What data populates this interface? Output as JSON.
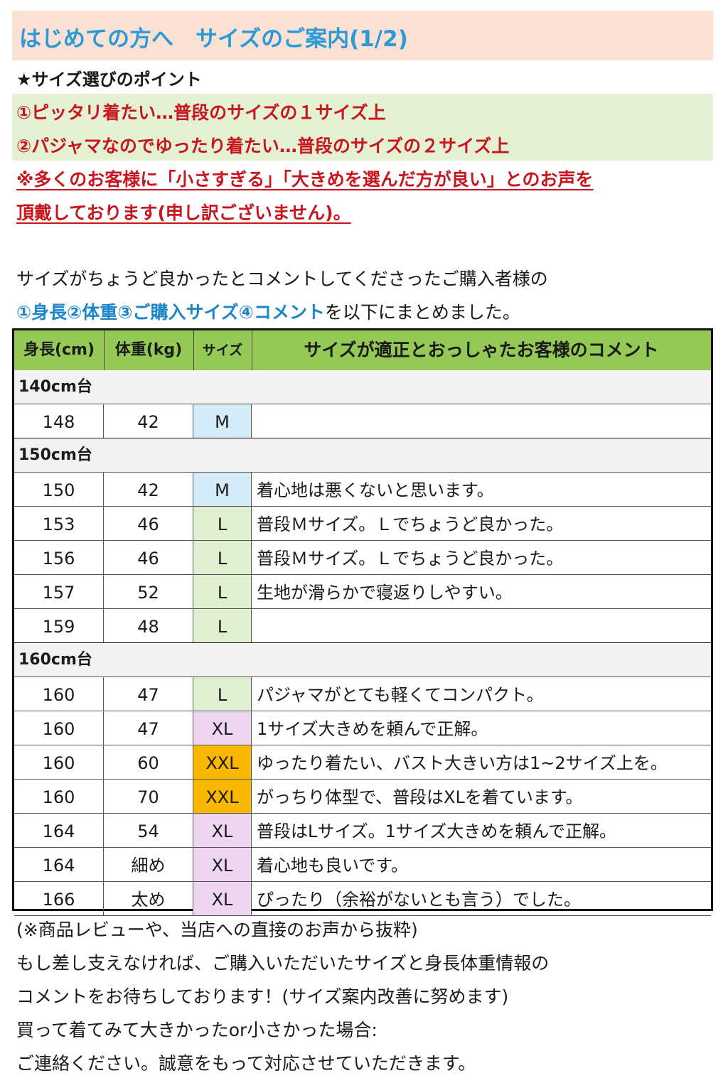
{
  "title": "はじめての方へ　サイズのご案内(1/2)",
  "points": {
    "heading": "★サイズ選びのポイント",
    "p1": "①ピッタリ着たい…普段のサイズの１サイズ上",
    "p2": "②パジャマなのでゆったり着たい…普段のサイズの２サイズ上",
    "note1": "※多くのお客様に「小さすぎる」「大きめを選んだ方が良い」とのお声を",
    "note2": "頂戴しております(申し訳ございません)。"
  },
  "intro": {
    "line1": "サイズがちょうど良かったとコメントしてくださったご購入者様の",
    "line2_blue": "①身長②体重③ご購入サイズ④コメント",
    "line2_rest": "を以下にまとめました。"
  },
  "table": {
    "headers": [
      "身長(cm)",
      "体重(kg)",
      "サイズ",
      "サイズが適正とおっしゃたお客様のコメント"
    ],
    "groups": [
      {
        "label": "140cm台",
        "rows": [
          {
            "height": "148",
            "weight": "42",
            "size": "M",
            "comment": ""
          }
        ]
      },
      {
        "label": "150cm台",
        "rows": [
          {
            "height": "150",
            "weight": "42",
            "size": "M",
            "comment": "着心地は悪くないと思います。"
          },
          {
            "height": "153",
            "weight": "46",
            "size": "L",
            "comment": "普段Ｍサイズ。Ｌでちょうど良かった。"
          },
          {
            "height": "156",
            "weight": "46",
            "size": "L",
            "comment": "普段Ｍサイズ。Ｌでちょうど良かった。"
          },
          {
            "height": "157",
            "weight": "52",
            "size": "L",
            "comment": "生地が滑らかで寝返りしやすい。"
          },
          {
            "height": "159",
            "weight": "48",
            "size": "L",
            "comment": ""
          }
        ]
      },
      {
        "label": "160cm台",
        "rows": [
          {
            "height": "160",
            "weight": "47",
            "size": "L",
            "comment": "パジャマがとても軽くてコンパクト。"
          },
          {
            "height": "160",
            "weight": "47",
            "size": "XL",
            "comment": "1サイズ大きめを頼んで正解。"
          },
          {
            "height": "160",
            "weight": "60",
            "size": "XXL",
            "comment": "ゆったり着たい、バスト大きい方は1~2サイズ上を。"
          },
          {
            "height": "160",
            "weight": "70",
            "size": "XXL",
            "comment": "がっちり体型で、普段はXLを着ています。"
          },
          {
            "height": "164",
            "weight": "54",
            "size": "XL",
            "comment": "普段はLサイズ。1サイズ大きめを頼んで正解。"
          },
          {
            "height": "164",
            "weight": "細め",
            "size": "XL",
            "comment": "着心地も良いです。"
          },
          {
            "height": "166",
            "weight": "太め",
            "size": "XL",
            "comment": "ぴったり（余裕がないとも言う）でした。"
          }
        ]
      }
    ]
  },
  "footer": {
    "line1": "(※商品レビューや、当店への直接のお声から抜粋)",
    "line2": "もし差し支えなければ、ご購入いただいたサイズと身長体重情報の",
    "line3": "コメントをお待ちしております！(サイズ案内改善に努めます)",
    "line4": "買って着てみて大きかったor小さかった場合:",
    "line5": "ご連絡ください。誠意をもって対応させていただきます。"
  },
  "colors": {
    "title_bg": "#fbe0d4",
    "title_text": "#2b9ad6",
    "point_band": "#e4f1d5",
    "red_text": "#c8161e",
    "table_header": "#93c954",
    "size_M": "#d4ebf8",
    "size_L": "#dff0d2",
    "size_XL": "#eed6f1",
    "size_XXL": "#f8b800"
  }
}
